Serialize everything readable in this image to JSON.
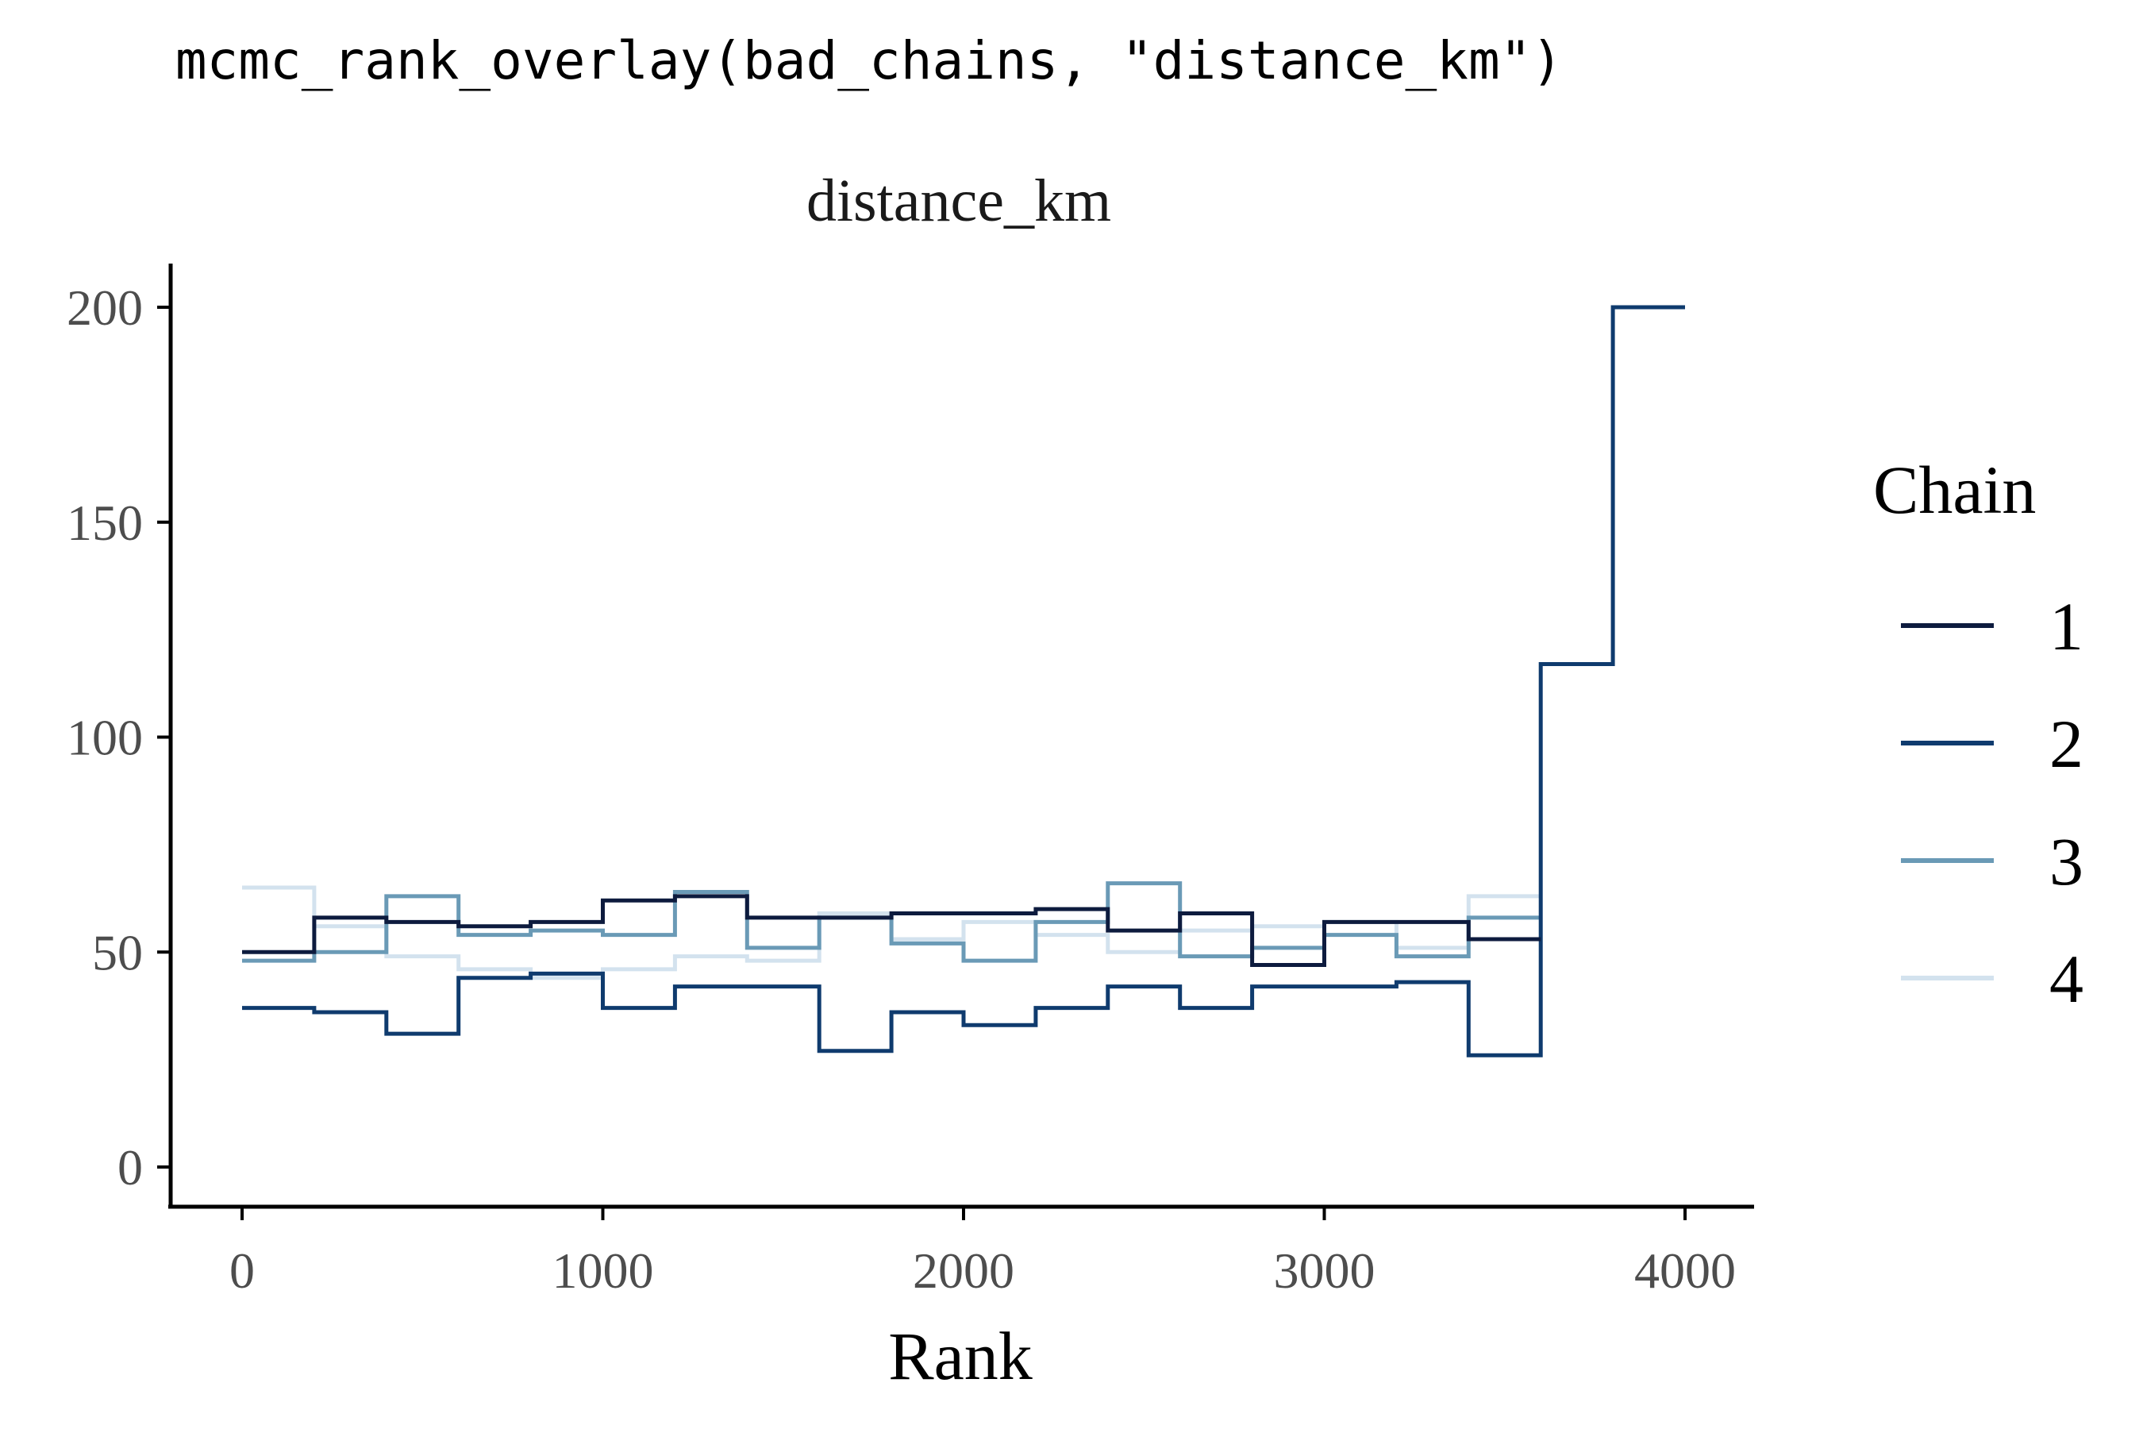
{
  "code_title": "mcmc_rank_overlay(bad_chains, \"distance_km\")",
  "chart_data": {
    "type": "line",
    "step": true,
    "title": "distance_km",
    "xlabel": "Rank",
    "ylabel": "",
    "xlim": [
      -200,
      4200
    ],
    "ylim": [
      -10,
      210
    ],
    "x_ticks": [
      0,
      1000,
      2000,
      3000,
      4000
    ],
    "y_ticks": [
      0,
      50,
      100,
      150,
      200
    ],
    "x_tick_labels": [
      "0",
      "1000",
      "2000",
      "3000",
      "4000"
    ],
    "y_tick_labels": [
      "0",
      "50",
      "100",
      "150",
      "200"
    ],
    "bin_edges": [
      0,
      200,
      400,
      600,
      800,
      1000,
      1200,
      1400,
      1600,
      1800,
      2000,
      2200,
      2400,
      2600,
      2800,
      3000,
      3200,
      3400,
      3600,
      3800,
      4000
    ],
    "grid": false,
    "legend": {
      "title": "Chain",
      "position": "right"
    },
    "series": [
      {
        "name": "1",
        "color": "#0d1b3e",
        "bin_start": 0,
        "values": [
          50,
          58,
          57,
          56,
          57,
          62,
          63,
          58,
          58,
          59,
          59,
          60,
          55,
          59,
          47,
          57,
          57,
          53
        ]
      },
      {
        "name": "2",
        "color": "#0f3b6e",
        "bin_start": 0,
        "values": [
          37,
          36,
          31,
          44,
          45,
          37,
          42,
          42,
          27,
          36,
          33,
          37,
          42,
          37,
          42,
          42,
          43,
          26,
          117,
          200
        ]
      },
      {
        "name": "3",
        "color": "#6a9ab6",
        "bin_start": 0,
        "values": [
          48,
          50,
          63,
          54,
          55,
          54,
          64,
          51,
          58,
          52,
          48,
          57,
          66,
          49,
          51,
          54,
          49,
          58
        ]
      },
      {
        "name": "4",
        "color": "#d3e2ee",
        "bin_start": 0,
        "values": [
          65,
          56,
          49,
          46,
          44,
          46,
          49,
          48,
          59,
          53,
          57,
          54,
          50,
          55,
          56,
          57,
          51,
          63
        ]
      }
    ]
  }
}
